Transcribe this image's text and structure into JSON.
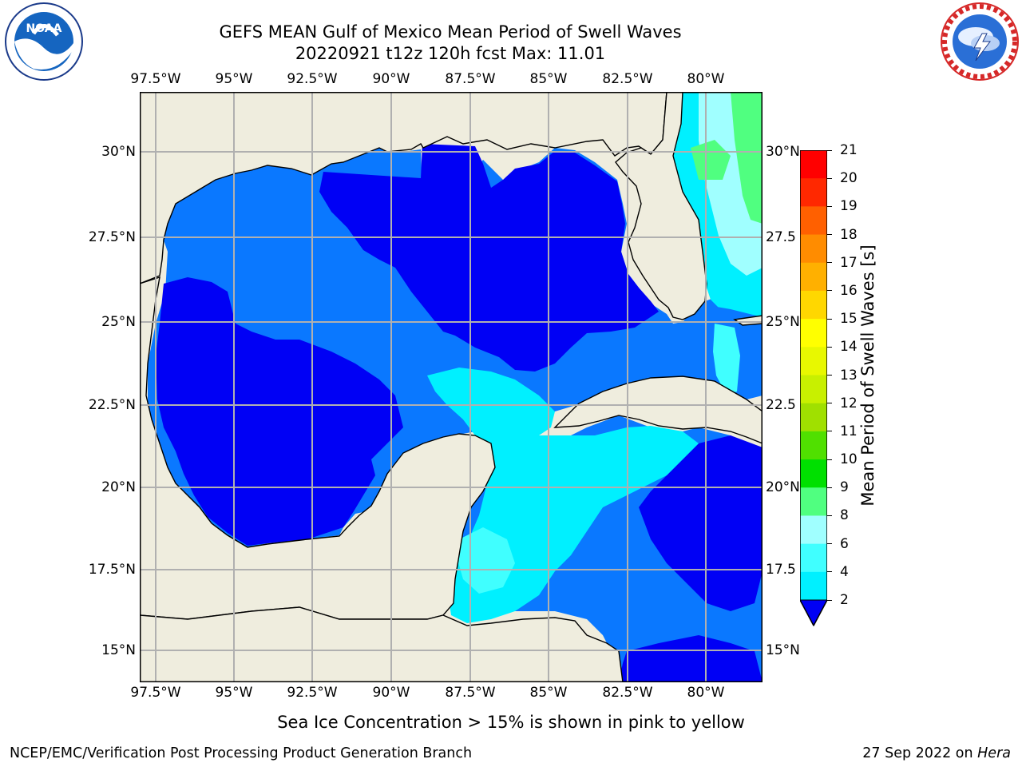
{
  "header": {
    "title_line1": "GEFS MEAN Gulf of Mexico Mean Period of Swell Waves",
    "title_line2": "20220921 t12z 120h fcst   Max: 11.01"
  },
  "logos": {
    "noaa_text": "NOAA",
    "noaa_ring": "NATIONAL OCEANIC AND ATMOSPHERIC ADMINISTRATION · U.S. DEPARTMENT OF COMMERCE",
    "nws_ring": "NATIONAL WEATHER SERVICE"
  },
  "map": {
    "lon_ticks": [
      "97.5°W",
      "95°W",
      "92.5°W",
      "90°W",
      "87.5°W",
      "85°W",
      "82.5°W",
      "80°W"
    ],
    "lat_ticks_left": [
      "30°N",
      "27.5°N",
      "25°N",
      "22.5°N",
      "20°N",
      "17.5°N",
      "15°N"
    ],
    "lat_ticks_right": [
      "30°N",
      "27.5",
      "25°N",
      "22.5",
      "20°N",
      "17.5",
      "15°N"
    ],
    "colors": {
      "land": "#efedde",
      "gridline": "#b0b0b0",
      "coast": "#000000"
    }
  },
  "colorbar": {
    "label": "Mean Period of Swell Waves [s]",
    "tick_labels": [
      "2",
      "4",
      "6",
      "8",
      "9",
      "10",
      "11",
      "12",
      "13",
      "14",
      "15",
      "16",
      "17",
      "18",
      "19",
      "20",
      "21"
    ],
    "colors": [
      "#0000f5",
      "#0a78ff",
      "#00f0ff",
      "#40ffff",
      "#a0ffff",
      "#50ff80",
      "#00e000",
      "#50e000",
      "#a0e000",
      "#c8f000",
      "#e8f800",
      "#ffff00",
      "#ffd700",
      "#ffb000",
      "#ff8c00",
      "#ff6000",
      "#ff2800",
      "#ff0000"
    ]
  },
  "note": "Sea Ice Concentration > 15% is shown in pink to yellow",
  "footer": {
    "left": "NCEP/EMC/Verification Post Processing Product Generation Branch",
    "date": "27 Sep 2022 on ",
    "machine": "Hera"
  }
}
